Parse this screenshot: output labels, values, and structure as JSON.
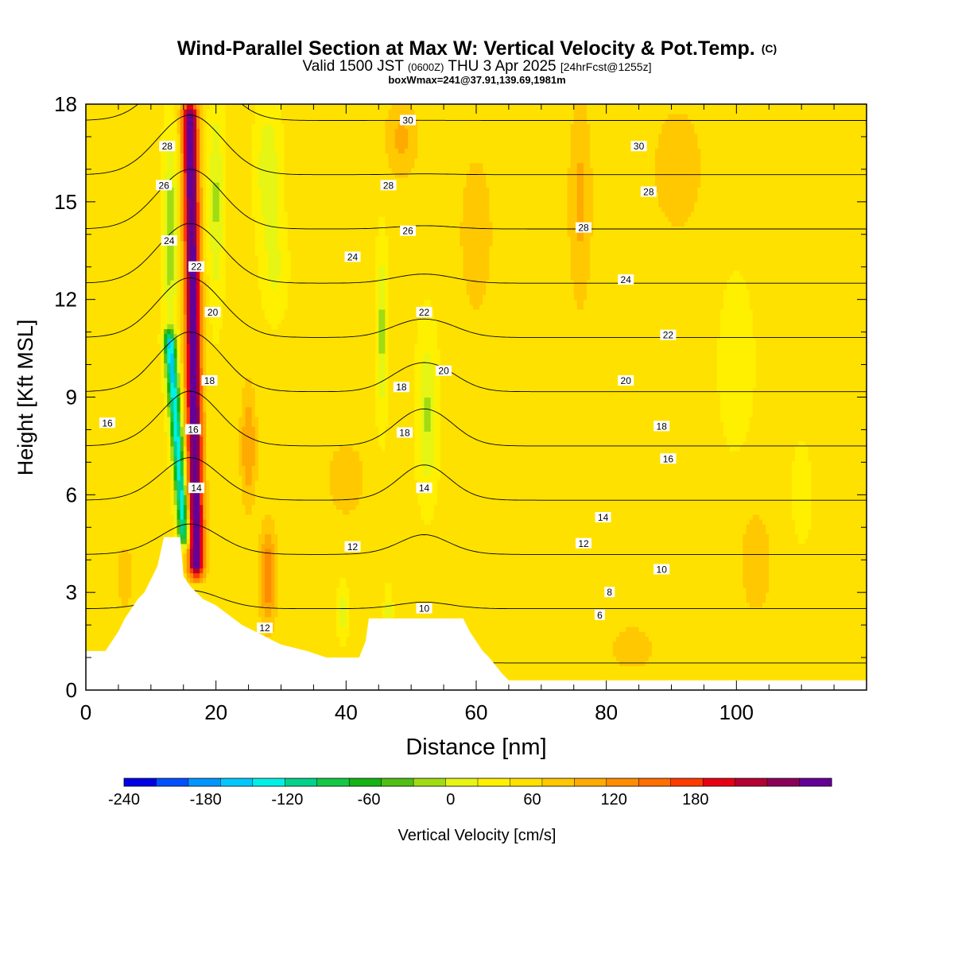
{
  "chart_data": {
    "type": "heatmap",
    "title": "Wind-Parallel Section at Max W: Vertical Velocity & Pot.Temp.",
    "title_mark": "(C)",
    "subtitle_parts": [
      "Valid 1500 JST ",
      "(0600Z)",
      " THU 3 Apr 2025 ",
      "[24hrFcst@1255z]"
    ],
    "subtitle2": "boxWmax=241@37.91,139.69,1981m",
    "xlabel": "Distance [nm]",
    "ylabel": "Height [Kft MSL]",
    "xlim": [
      0,
      120
    ],
    "ylim": [
      0,
      18
    ],
    "x_ticks": [
      0,
      20,
      40,
      60,
      80,
      100
    ],
    "y_ticks": [
      0,
      3,
      6,
      9,
      12,
      15,
      18
    ],
    "x_tick_labels": [
      "0",
      "20",
      "40",
      "60",
      "80",
      "100"
    ],
    "y_tick_labels": [
      "0",
      "3",
      "6",
      "9",
      "12",
      "15",
      "18"
    ],
    "colorbar": {
      "label": "Vertical Velocity [cm/s]",
      "min": -240,
      "max": 240,
      "step": 20,
      "tick_values": [
        -240,
        -180,
        -120,
        -60,
        0,
        60,
        120,
        180
      ],
      "tick_labels": [
        "-240",
        "-180",
        "-120",
        "-60",
        "0",
        "60",
        "120",
        "180"
      ],
      "colors": [
        "#0000e6",
        "#0050ff",
        "#0096ff",
        "#00c8ff",
        "#00f0e6",
        "#00d28c",
        "#14c846",
        "#14b414",
        "#50be14",
        "#a0dc14",
        "#e6f514",
        "#fff000",
        "#ffe100",
        "#ffc800",
        "#ffaa00",
        "#ff8c00",
        "#ff6e00",
        "#ff3c00",
        "#e60014",
        "#b40032",
        "#8c005a",
        "#640096"
      ]
    },
    "terrain_kft": [
      [
        0,
        1.2
      ],
      [
        3,
        1.2
      ],
      [
        4,
        1.5
      ],
      [
        5,
        1.8
      ],
      [
        6,
        2.2
      ],
      [
        7,
        2.5
      ],
      [
        8,
        2.8
      ],
      [
        9,
        3.0
      ],
      [
        10,
        3.4
      ],
      [
        11,
        3.8
      ],
      [
        12,
        4.7
      ],
      [
        14.5,
        4.7
      ],
      [
        15,
        3.5
      ],
      [
        16,
        3.2
      ],
      [
        17,
        3.0
      ],
      [
        18,
        2.8
      ],
      [
        20,
        2.6
      ],
      [
        22,
        2.3
      ],
      [
        24,
        2.0
      ],
      [
        26,
        1.8
      ],
      [
        28,
        1.6
      ],
      [
        30,
        1.4
      ],
      [
        34,
        1.2
      ],
      [
        37,
        1.0
      ],
      [
        40,
        1.0
      ],
      [
        42,
        1.0
      ],
      [
        43,
        1.5
      ],
      [
        43.5,
        2.2
      ],
      [
        58,
        2.2
      ],
      [
        59,
        1.8
      ],
      [
        60,
        1.5
      ],
      [
        61,
        1.2
      ],
      [
        62,
        1.0
      ],
      [
        64,
        0.5
      ],
      [
        65,
        0.3
      ],
      [
        120,
        0.3
      ]
    ],
    "theta_contours": {
      "units": "C",
      "levels": [
        6,
        8,
        10,
        12,
        14,
        16,
        18,
        20,
        22,
        24,
        26,
        28,
        30
      ],
      "labels": [
        {
          "text": "28",
          "x": 12.5,
          "y": 16.7
        },
        {
          "text": "26",
          "x": 12,
          "y": 15.5
        },
        {
          "text": "24",
          "x": 12.8,
          "y": 13.8
        },
        {
          "text": "22",
          "x": 17,
          "y": 13.0
        },
        {
          "text": "20",
          "x": 19.5,
          "y": 11.6
        },
        {
          "text": "18",
          "x": 19,
          "y": 9.5
        },
        {
          "text": "16",
          "x": 16.5,
          "y": 8.0
        },
        {
          "text": "14",
          "x": 17,
          "y": 6.2
        },
        {
          "text": "16",
          "x": 3.3,
          "y": 8.2
        },
        {
          "text": "12",
          "x": 27.5,
          "y": 1.9
        },
        {
          "text": "12",
          "x": 41,
          "y": 4.4
        },
        {
          "text": "30",
          "x": 49.5,
          "y": 17.5
        },
        {
          "text": "28",
          "x": 46.5,
          "y": 15.5
        },
        {
          "text": "26",
          "x": 49.5,
          "y": 14.1
        },
        {
          "text": "24",
          "x": 41,
          "y": 13.3
        },
        {
          "text": "22",
          "x": 52,
          "y": 11.6
        },
        {
          "text": "20",
          "x": 55,
          "y": 9.8
        },
        {
          "text": "18",
          "x": 48.5,
          "y": 9.3
        },
        {
          "text": "18",
          "x": 49,
          "y": 7.9
        },
        {
          "text": "14",
          "x": 52,
          "y": 6.2
        },
        {
          "text": "10",
          "x": 52,
          "y": 2.5
        },
        {
          "text": "30",
          "x": 85,
          "y": 16.7
        },
        {
          "text": "28",
          "x": 86.5,
          "y": 15.3
        },
        {
          "text": "28",
          "x": 76.5,
          "y": 14.2
        },
        {
          "text": "24",
          "x": 83,
          "y": 12.6
        },
        {
          "text": "22",
          "x": 89.5,
          "y": 10.9
        },
        {
          "text": "20",
          "x": 83,
          "y": 9.5
        },
        {
          "text": "18",
          "x": 88.5,
          "y": 8.1
        },
        {
          "text": "16",
          "x": 89.5,
          "y": 7.1
        },
        {
          "text": "14",
          "x": 79.5,
          "y": 5.3
        },
        {
          "text": "12",
          "x": 76.5,
          "y": 4.5
        },
        {
          "text": "10",
          "x": 88.5,
          "y": 3.7
        },
        {
          "text": "8",
          "x": 80.5,
          "y": 3.0
        },
        {
          "text": "6",
          "x": 79,
          "y": 2.3
        }
      ]
    },
    "vv_features": [
      {
        "kind": "core",
        "value": 200,
        "bottom": [
          17,
          3.5
        ],
        "top": [
          17,
          18
        ],
        "lean": -1.0,
        "width": 1.2
      },
      {
        "kind": "core",
        "value": -160,
        "bottom": [
          15.2,
          4.5
        ],
        "top": [
          12.8,
          11
        ],
        "lean": 0,
        "width": 0.9
      },
      {
        "kind": "blob",
        "value": -60,
        "x": 13,
        "y": 14,
        "sx": 1.1,
        "sy": 3.2
      },
      {
        "kind": "blob",
        "value": -50,
        "x": 20,
        "y": 15,
        "sx": 1.2,
        "sy": 3.0
      },
      {
        "kind": "blob",
        "value": -45,
        "x": 28,
        "y": 16,
        "sx": 1.8,
        "sy": 2.0
      },
      {
        "kind": "blob",
        "value": -30,
        "x": 29,
        "y": 13,
        "sx": 1.8,
        "sy": 1.5
      },
      {
        "kind": "blob",
        "value": -55,
        "x": 45.5,
        "y": 11,
        "sx": 0.8,
        "sy": 2.5
      },
      {
        "kind": "blob",
        "value": -50,
        "x": 52.5,
        "y": 8.5,
        "sx": 1.5,
        "sy": 2.4
      },
      {
        "kind": "blob",
        "value": -40,
        "x": 39.5,
        "y": 2.4,
        "sx": 0.8,
        "sy": 0.8
      },
      {
        "kind": "blob",
        "value": -35,
        "x": 46.5,
        "y": 2.5,
        "sx": 0.6,
        "sy": 0.6
      },
      {
        "kind": "blob",
        "value": 75,
        "x": 28,
        "y": 3.5,
        "sx": 1.3,
        "sy": 1.5
      },
      {
        "kind": "blob",
        "value": 55,
        "x": 25,
        "y": 7.5,
        "sx": 1.2,
        "sy": 1.8
      },
      {
        "kind": "blob",
        "value": 40,
        "x": 48.5,
        "y": 17,
        "sx": 2.5,
        "sy": 1.2
      },
      {
        "kind": "blob",
        "value": 40,
        "x": 76,
        "y": 15,
        "sx": 1.8,
        "sy": 3.2
      },
      {
        "kind": "blob",
        "value": 30,
        "x": 40,
        "y": 6.5,
        "sx": 3,
        "sy": 1.2
      },
      {
        "kind": "blob",
        "value": 25,
        "x": 60,
        "y": 14,
        "sx": 3,
        "sy": 3
      },
      {
        "kind": "blob",
        "value": 30,
        "x": 91,
        "y": 16,
        "sx": 4,
        "sy": 2
      },
      {
        "kind": "blob",
        "value": 25,
        "x": 103,
        "y": 4,
        "sx": 3,
        "sy": 2
      },
      {
        "kind": "blob",
        "value": 20,
        "x": 6,
        "y": 3.5,
        "sx": 2,
        "sy": 1.5
      },
      {
        "kind": "blob",
        "value": 25,
        "x": 84,
        "y": 1.3,
        "sx": 4,
        "sy": 0.8
      },
      {
        "kind": "blob",
        "value": -10,
        "x": 100,
        "y": 10,
        "sx": 4,
        "sy": 4
      },
      {
        "kind": "blob",
        "value": -8,
        "x": 110,
        "y": 6,
        "sx": 3,
        "sy": 3
      }
    ]
  }
}
